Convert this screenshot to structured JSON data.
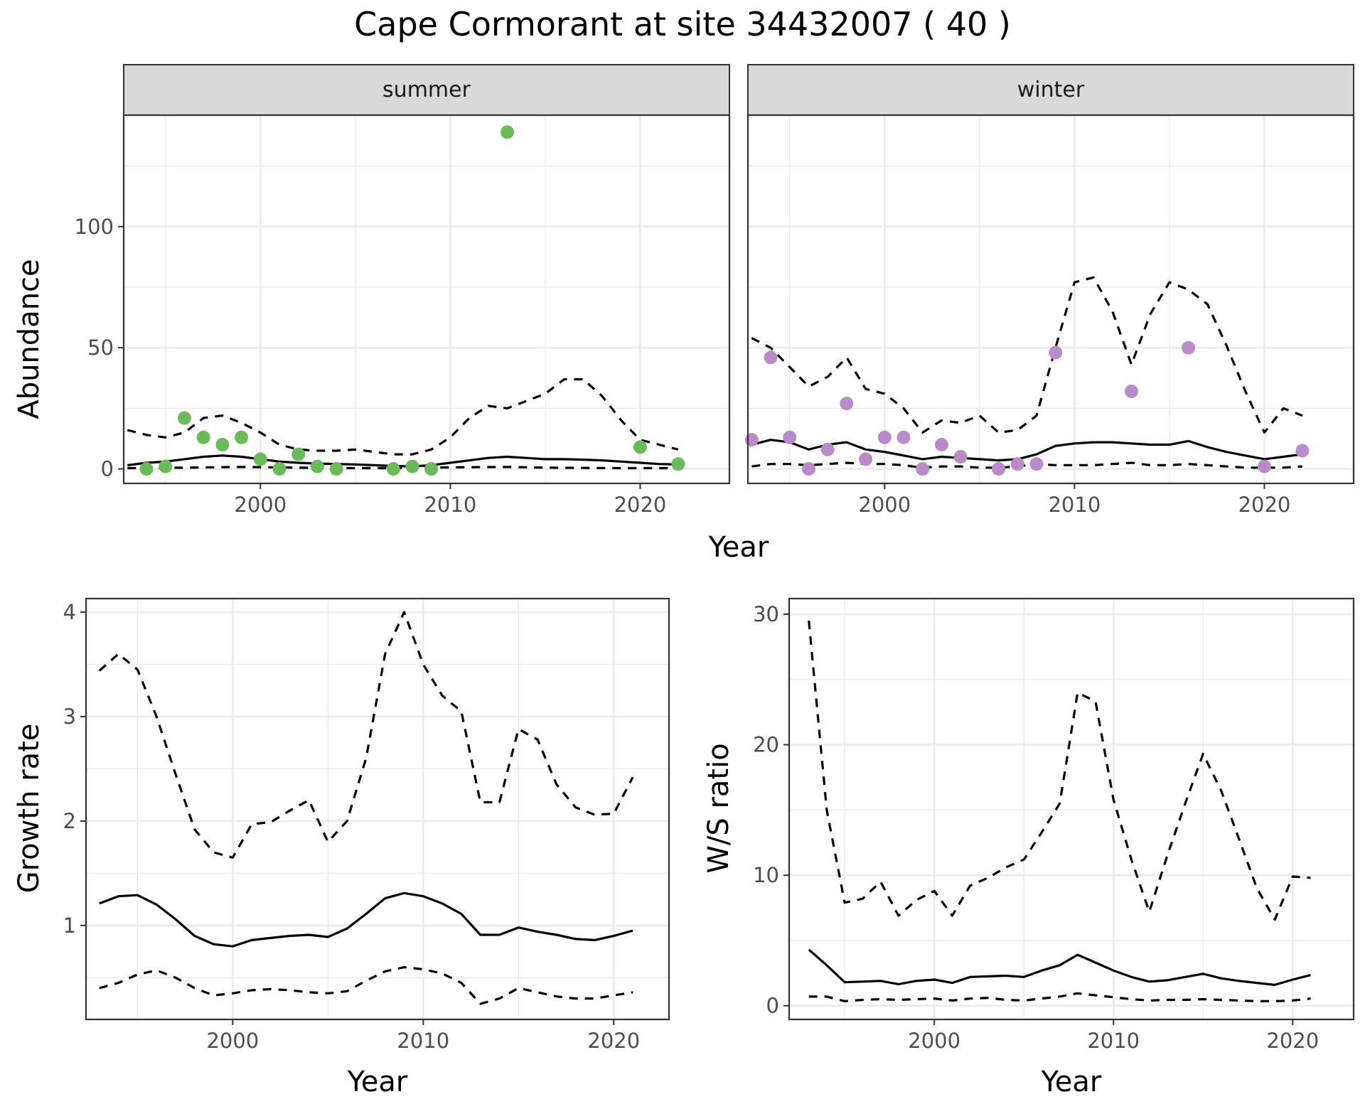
{
  "title": "Cape Cormorant at site 34432007 ( 40 )",
  "colors": {
    "summer": "#6bbb5b",
    "winter": "#b98cc8",
    "line": "#000000",
    "strip": "#d9d9d9",
    "grid": "#ebebeb"
  },
  "chart_data": [
    {
      "type": "scatter",
      "facet": "summer",
      "xlabel": "Year",
      "ylabel": "Abundance",
      "xlim": [
        1992.8,
        2024.7
      ],
      "ylim": [
        -6,
        146
      ],
      "xticks": [
        2000,
        2010,
        2020
      ],
      "yticks": [
        0,
        50,
        100
      ],
      "grid": true,
      "points": {
        "x": [
          1994,
          1995,
          1996,
          1997,
          1998,
          1999,
          2000,
          2001,
          2002,
          2003,
          2004,
          2007,
          2008,
          2009,
          2013,
          2020,
          2022
        ],
        "y": [
          0,
          1,
          21,
          13,
          10,
          13,
          4,
          0,
          6,
          1,
          0,
          0,
          1,
          0,
          139,
          9,
          2
        ]
      },
      "series": [
        {
          "style": "solid",
          "x": [
            1993,
            1994,
            1995,
            1996,
            1997,
            1998,
            1999,
            2000,
            2001,
            2002,
            2003,
            2004,
            2005,
            2006,
            2007,
            2008,
            2009,
            2010,
            2011,
            2012,
            2013,
            2014,
            2015,
            2016,
            2017,
            2018,
            2019,
            2020,
            2021,
            2022
          ],
          "y": [
            1.5,
            2.5,
            3,
            4,
            5,
            5.5,
            5,
            4,
            3,
            2.5,
            2.2,
            2,
            1.8,
            1.5,
            1.2,
            1,
            1.5,
            2.5,
            3.5,
            4.5,
            5,
            4.5,
            4,
            4,
            3.8,
            3.5,
            3,
            2.5,
            2,
            1.8
          ]
        },
        {
          "style": "dashed",
          "x": [
            1993,
            1994,
            1995,
            1996,
            1997,
            1998,
            1999,
            2000,
            2001,
            2002,
            2003,
            2004,
            2005,
            2006,
            2007,
            2008,
            2009,
            2010,
            2011,
            2012,
            2013,
            2014,
            2015,
            2016,
            2017,
            2018,
            2019,
            2020,
            2021,
            2022
          ],
          "y": [
            16,
            14,
            13,
            15,
            21,
            22,
            19,
            15,
            10,
            8,
            7.5,
            7.5,
            8,
            7,
            6,
            6,
            8,
            13,
            21,
            26,
            25,
            28,
            31,
            37,
            37,
            30,
            20,
            12,
            10,
            8
          ]
        },
        {
          "style": "dashed",
          "x": [
            1993,
            1995,
            1997,
            1999,
            2001,
            2003,
            2005,
            2007,
            2009,
            2011,
            2013,
            2015,
            2017,
            2019,
            2021,
            2022
          ],
          "y": [
            0.3,
            0.4,
            0.6,
            0.8,
            0.6,
            0.4,
            0.3,
            0.3,
            0.5,
            0.7,
            0.8,
            0.5,
            0.4,
            0.3,
            0.3,
            0.3
          ]
        }
      ]
    },
    {
      "type": "scatter",
      "facet": "winter",
      "xlabel": "Year",
      "ylabel": "Abundance",
      "xlim": [
        1992.8,
        2024.7
      ],
      "ylim": [
        -6,
        146
      ],
      "xticks": [
        2000,
        2010,
        2020
      ],
      "yticks": [
        0,
        50,
        100
      ],
      "grid": true,
      "points": {
        "x": [
          1993,
          1994,
          1995,
          1996,
          1997,
          1998,
          1999,
          2000,
          2001,
          2002,
          2003,
          2004,
          2006,
          2007,
          2008,
          2009,
          2013,
          2016,
          2020,
          2022
        ],
        "y": [
          12,
          46,
          13,
          0,
          8,
          27,
          4,
          13,
          13,
          0,
          10,
          5,
          0,
          2,
          2,
          48,
          32,
          50,
          1,
          7.5
        ]
      },
      "series": [
        {
          "style": "solid",
          "x": [
            1993,
            1994,
            1995,
            1996,
            1997,
            1998,
            1999,
            2000,
            2001,
            2002,
            2003,
            2004,
            2005,
            2006,
            2007,
            2008,
            2009,
            2010,
            2011,
            2012,
            2013,
            2014,
            2015,
            2016,
            2017,
            2018,
            2019,
            2020,
            2021,
            2022
          ],
          "y": [
            10,
            12,
            11,
            8,
            10,
            11,
            8,
            7,
            5.5,
            4,
            5,
            4.5,
            4,
            3.5,
            4,
            6,
            9.5,
            10.5,
            11,
            11,
            10.5,
            10,
            10,
            11.5,
            9,
            7,
            5.5,
            4,
            5,
            6
          ]
        },
        {
          "style": "dashed",
          "x": [
            1993,
            1994,
            1995,
            1996,
            1997,
            1998,
            1999,
            2000,
            2001,
            2002,
            2003,
            2004,
            2005,
            2006,
            2007,
            2008,
            2009,
            2010,
            2011,
            2012,
            2013,
            2014,
            2015,
            2016,
            2017,
            2018,
            2019,
            2020,
            2021,
            2022
          ],
          "y": [
            54,
            50,
            42,
            34,
            38,
            46,
            33,
            31,
            25,
            15,
            20,
            19,
            22,
            15,
            16,
            22,
            50,
            77,
            79,
            65,
            43,
            64,
            77,
            74,
            68,
            51,
            32,
            15,
            25,
            22
          ]
        },
        {
          "style": "dashed",
          "x": [
            1993,
            1994,
            1995,
            1996,
            1997,
            1998,
            1999,
            2000,
            2001,
            2002,
            2003,
            2004,
            2005,
            2006,
            2007,
            2008,
            2009,
            2010,
            2011,
            2012,
            2013,
            2014,
            2015,
            2016,
            2017,
            2018,
            2019,
            2020,
            2021,
            2022
          ],
          "y": [
            1,
            2,
            2,
            1.5,
            2,
            2.5,
            2,
            2,
            1.5,
            0.5,
            1,
            1,
            0.5,
            0.5,
            1,
            2,
            1.5,
            1.5,
            1.5,
            2,
            2.5,
            1.5,
            1.5,
            2,
            1.5,
            1,
            0.5,
            0.5,
            0.5,
            1
          ]
        }
      ]
    },
    {
      "type": "line",
      "xlabel": "Year",
      "ylabel": "Growth rate",
      "xlim": [
        1992.3,
        2022.9
      ],
      "ylim": [
        0.1,
        4.13
      ],
      "xticks": [
        2000,
        2010,
        2020
      ],
      "yticks": [
        1,
        2,
        3,
        4
      ],
      "grid": true,
      "series": [
        {
          "style": "solid",
          "x": [
            1993,
            1994,
            1995,
            1996,
            1997,
            1998,
            1999,
            2000,
            2001,
            2002,
            2003,
            2004,
            2005,
            2006,
            2007,
            2008,
            2009,
            2010,
            2011,
            2012,
            2013,
            2014,
            2015,
            2016,
            2017,
            2018,
            2019,
            2020,
            2021
          ],
          "y": [
            1.21,
            1.28,
            1.29,
            1.2,
            1.06,
            0.9,
            0.82,
            0.8,
            0.86,
            0.88,
            0.9,
            0.91,
            0.89,
            0.97,
            1.11,
            1.26,
            1.31,
            1.28,
            1.21,
            1.11,
            0.91,
            0.91,
            0.98,
            0.94,
            0.91,
            0.87,
            0.86,
            0.9,
            0.95
          ]
        },
        {
          "style": "dashed",
          "x": [
            1993,
            1994,
            1995,
            1996,
            1997,
            1998,
            1999,
            2000,
            2001,
            2002,
            2003,
            2004,
            2005,
            2006,
            2007,
            2008,
            2009,
            2010,
            2011,
            2012,
            2013,
            2014,
            2015,
            2016,
            2017,
            2018,
            2019,
            2020,
            2021
          ],
          "y": [
            3.44,
            3.6,
            3.45,
            3.0,
            2.45,
            1.92,
            1.7,
            1.65,
            1.97,
            1.99,
            2.1,
            2.2,
            1.8,
            2.0,
            2.6,
            3.6,
            4.0,
            3.5,
            3.2,
            3.05,
            2.18,
            2.18,
            2.88,
            2.78,
            2.35,
            2.13,
            2.06,
            2.07,
            2.42
          ]
        },
        {
          "style": "dashed",
          "x": [
            1993,
            1994,
            1995,
            1996,
            1997,
            1998,
            1999,
            2000,
            2001,
            2002,
            2003,
            2004,
            2005,
            2006,
            2007,
            2008,
            2009,
            2010,
            2011,
            2012,
            2013,
            2014,
            2015,
            2016,
            2017,
            2018,
            2019,
            2020,
            2021
          ],
          "y": [
            0.4,
            0.45,
            0.53,
            0.57,
            0.5,
            0.4,
            0.33,
            0.35,
            0.38,
            0.39,
            0.38,
            0.36,
            0.35,
            0.37,
            0.47,
            0.56,
            0.6,
            0.58,
            0.54,
            0.45,
            0.25,
            0.3,
            0.4,
            0.36,
            0.32,
            0.3,
            0.3,
            0.33,
            0.36
          ]
        }
      ]
    },
    {
      "type": "line",
      "xlabel": "Year",
      "ylabel": "W/S ratio",
      "xlim": [
        1991.9,
        2023.4
      ],
      "ylim": [
        -1.05,
        31.2
      ],
      "xticks": [
        2000,
        2010,
        2020
      ],
      "yticks": [
        0,
        10,
        20,
        30
      ],
      "grid": true,
      "series": [
        {
          "style": "solid",
          "x": [
            1993,
            1994,
            1995,
            1996,
            1997,
            1998,
            1999,
            2000,
            2001,
            2002,
            2003,
            2004,
            2005,
            2006,
            2007,
            2008,
            2009,
            2010,
            2011,
            2012,
            2013,
            2014,
            2015,
            2016,
            2017,
            2018,
            2019,
            2020,
            2021
          ],
          "y": [
            4.3,
            3.1,
            1.8,
            1.85,
            1.9,
            1.65,
            1.9,
            2.0,
            1.75,
            2.2,
            2.25,
            2.3,
            2.2,
            2.7,
            3.1,
            3.9,
            3.3,
            2.7,
            2.2,
            1.85,
            1.95,
            2.2,
            2.45,
            2.1,
            1.9,
            1.75,
            1.6,
            2.0,
            2.35
          ]
        },
        {
          "style": "dashed",
          "x": [
            1993,
            1994,
            1995,
            1996,
            1997,
            1998,
            1999,
            2000,
            2001,
            2002,
            2003,
            2004,
            2005,
            2006,
            2007,
            2008,
            2009,
            2010,
            2011,
            2012,
            2013,
            2014,
            2015,
            2016,
            2017,
            2018,
            2019,
            2020,
            2021
          ],
          "y": [
            29.5,
            15,
            7.9,
            8.2,
            9.5,
            6.9,
            8.1,
            8.8,
            6.9,
            9.2,
            9.8,
            10.6,
            11.2,
            13.3,
            15.5,
            24,
            23.3,
            15.8,
            11.2,
            7.2,
            11.5,
            15.5,
            19.3,
            16.5,
            12.8,
            9.0,
            6.6,
            9.9,
            9.8
          ]
        },
        {
          "style": "dashed",
          "x": [
            1993,
            1994,
            1995,
            1996,
            1997,
            1998,
            1999,
            2000,
            2001,
            2002,
            2003,
            2004,
            2005,
            2006,
            2007,
            2008,
            2009,
            2010,
            2011,
            2012,
            2013,
            2014,
            2015,
            2016,
            2017,
            2018,
            2019,
            2020,
            2021
          ],
          "y": [
            0.7,
            0.7,
            0.35,
            0.45,
            0.5,
            0.45,
            0.5,
            0.55,
            0.4,
            0.55,
            0.6,
            0.45,
            0.4,
            0.55,
            0.7,
            0.95,
            0.8,
            0.65,
            0.5,
            0.4,
            0.45,
            0.45,
            0.5,
            0.45,
            0.4,
            0.35,
            0.35,
            0.4,
            0.55
          ]
        }
      ]
    }
  ]
}
